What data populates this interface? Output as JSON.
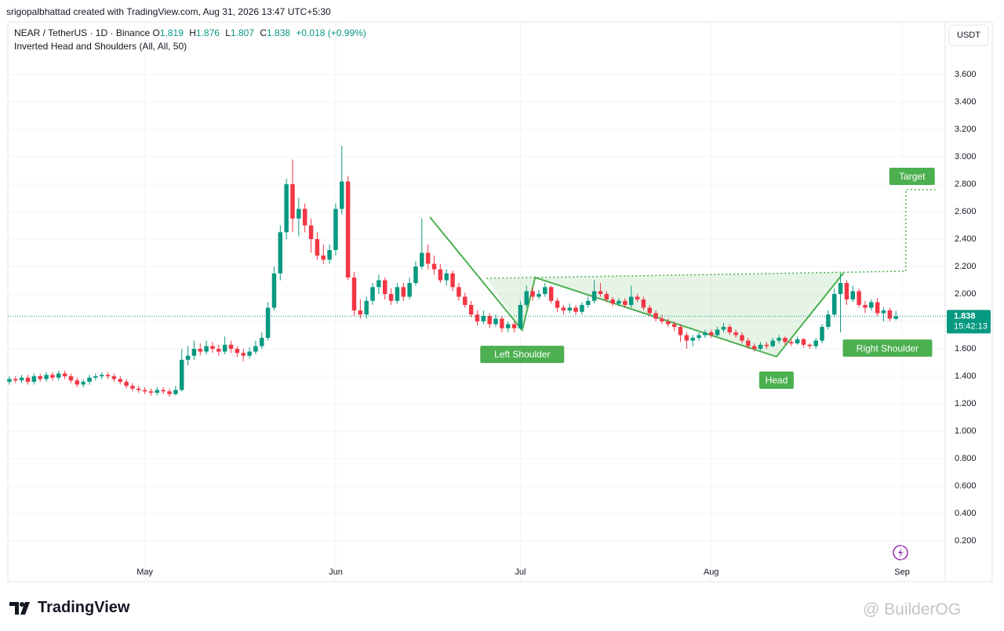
{
  "created_by": "srigopalbhattad created with TradingView.com, Aug 31, 2026 13:47 UTC+5:30",
  "brand": "TradingView",
  "watermark": "@ BuilderOG",
  "chart_data": {
    "type": "candlestick",
    "symbol": "NEAR / TetherUS · 1D · Binance",
    "ohlc_letters": [
      "O",
      "H",
      "L",
      "C"
    ],
    "change": "+0.018 (+0.99%)",
    "currency": "USDT",
    "countdown": "15:42:13",
    "up_color": "#089981",
    "down_color": "#f23645",
    "grid": true,
    "xlim": [
      -0.25,
      152
    ],
    "ylim": [
      0.086,
      3.983
    ],
    "xticks": [
      {
        "value": 22,
        "label": "May"
      },
      {
        "value": 53,
        "label": "Jun"
      },
      {
        "value": 83,
        "label": "Jul"
      },
      {
        "value": 114,
        "label": "Aug"
      },
      {
        "value": 145,
        "label": "Sep"
      }
    ],
    "yticks": [
      {
        "value": 0.2,
        "label": "0.200"
      },
      {
        "value": 0.4,
        "label": "0.400"
      },
      {
        "value": 0.6,
        "label": "0.600"
      },
      {
        "value": 0.8,
        "label": "0.800"
      },
      {
        "value": 1.0,
        "label": "1.000"
      },
      {
        "value": 1.2,
        "label": "1.200"
      },
      {
        "value": 1.4,
        "label": "1.400"
      },
      {
        "value": 1.6,
        "label": "1.600"
      },
      {
        "value": 1.8,
        "label": "1.800"
      },
      {
        "value": 2.0,
        "label": "2.000"
      },
      {
        "value": 2.2,
        "label": "2.200"
      },
      {
        "value": 2.4,
        "label": "2.400"
      },
      {
        "value": 2.6,
        "label": "2.600"
      },
      {
        "value": 2.8,
        "label": "2.800"
      },
      {
        "value": 3.0,
        "label": "3.000"
      },
      {
        "value": 3.2,
        "label": "3.200"
      },
      {
        "value": 3.4,
        "label": "3.400"
      },
      {
        "value": 3.6,
        "label": "3.600"
      }
    ],
    "ohlc": [
      [
        1.36,
        1.4,
        1.34,
        1.38
      ],
      [
        1.38,
        1.4,
        1.35,
        1.37
      ],
      [
        1.37,
        1.41,
        1.35,
        1.39
      ],
      [
        1.39,
        1.41,
        1.34,
        1.36
      ],
      [
        1.36,
        1.42,
        1.34,
        1.4
      ],
      [
        1.4,
        1.42,
        1.36,
        1.38
      ],
      [
        1.38,
        1.43,
        1.36,
        1.41
      ],
      [
        1.41,
        1.43,
        1.37,
        1.39
      ],
      [
        1.39,
        1.44,
        1.37,
        1.42
      ],
      [
        1.42,
        1.44,
        1.38,
        1.4
      ],
      [
        1.4,
        1.42,
        1.35,
        1.37
      ],
      [
        1.37,
        1.39,
        1.32,
        1.34
      ],
      [
        1.34,
        1.38,
        1.32,
        1.36
      ],
      [
        1.36,
        1.41,
        1.34,
        1.39
      ],
      [
        1.39,
        1.42,
        1.37,
        1.4
      ],
      [
        1.4,
        1.43,
        1.38,
        1.41
      ],
      [
        1.41,
        1.43,
        1.38,
        1.4
      ],
      [
        1.4,
        1.42,
        1.36,
        1.38
      ],
      [
        1.38,
        1.4,
        1.34,
        1.36
      ],
      [
        1.36,
        1.38,
        1.31,
        1.33
      ],
      [
        1.33,
        1.35,
        1.29,
        1.31
      ],
      [
        1.31,
        1.33,
        1.28,
        1.3
      ],
      [
        1.3,
        1.32,
        1.27,
        1.29
      ],
      [
        1.29,
        1.31,
        1.26,
        1.28
      ],
      [
        1.28,
        1.32,
        1.26,
        1.3
      ],
      [
        1.3,
        1.32,
        1.27,
        1.29
      ],
      [
        1.29,
        1.31,
        1.25,
        1.27
      ],
      [
        1.27,
        1.33,
        1.26,
        1.3
      ],
      [
        1.3,
        1.6,
        1.29,
        1.52
      ],
      [
        1.52,
        1.62,
        1.48,
        1.55
      ],
      [
        1.55,
        1.66,
        1.52,
        1.6
      ],
      [
        1.6,
        1.64,
        1.55,
        1.58
      ],
      [
        1.58,
        1.66,
        1.56,
        1.62
      ],
      [
        1.62,
        1.65,
        1.57,
        1.6
      ],
      [
        1.6,
        1.63,
        1.55,
        1.58
      ],
      [
        1.58,
        1.69,
        1.56,
        1.63
      ],
      [
        1.63,
        1.66,
        1.57,
        1.6
      ],
      [
        1.6,
        1.62,
        1.54,
        1.57
      ],
      [
        1.57,
        1.6,
        1.51,
        1.55
      ],
      [
        1.55,
        1.61,
        1.53,
        1.58
      ],
      [
        1.58,
        1.66,
        1.56,
        1.62
      ],
      [
        1.62,
        1.72,
        1.6,
        1.68
      ],
      [
        1.68,
        1.94,
        1.66,
        1.9
      ],
      [
        1.9,
        2.2,
        1.88,
        2.15
      ],
      [
        2.15,
        2.5,
        2.1,
        2.45
      ],
      [
        2.45,
        2.84,
        2.4,
        2.8
      ],
      [
        2.8,
        2.98,
        2.45,
        2.55
      ],
      [
        2.55,
        2.7,
        2.42,
        2.62
      ],
      [
        2.62,
        2.66,
        2.45,
        2.5
      ],
      [
        2.5,
        2.55,
        2.3,
        2.4
      ],
      [
        2.4,
        2.45,
        2.25,
        2.28
      ],
      [
        2.28,
        2.36,
        2.22,
        2.25
      ],
      [
        2.25,
        2.36,
        2.22,
        2.32
      ],
      [
        2.32,
        2.66,
        2.28,
        2.62
      ],
      [
        2.62,
        3.08,
        2.58,
        2.82
      ],
      [
        2.82,
        2.86,
        2.1,
        2.12
      ],
      [
        2.12,
        2.16,
        1.84,
        1.88
      ],
      [
        1.88,
        1.96,
        1.82,
        1.85
      ],
      [
        1.85,
        1.98,
        1.82,
        1.95
      ],
      [
        1.95,
        2.08,
        1.92,
        2.05
      ],
      [
        2.05,
        2.14,
        2.0,
        2.1
      ],
      [
        2.1,
        2.12,
        1.96,
        2.0
      ],
      [
        2.0,
        2.04,
        1.92,
        1.95
      ],
      [
        1.95,
        2.08,
        1.93,
        2.05
      ],
      [
        2.05,
        2.08,
        1.95,
        1.98
      ],
      [
        1.98,
        2.12,
        1.96,
        2.08
      ],
      [
        2.08,
        2.24,
        2.06,
        2.2
      ],
      [
        2.2,
        2.55,
        2.18,
        2.3
      ],
      [
        2.3,
        2.36,
        2.18,
        2.22
      ],
      [
        2.22,
        2.28,
        2.14,
        2.18
      ],
      [
        2.18,
        2.22,
        2.08,
        2.1
      ],
      [
        2.1,
        2.18,
        2.06,
        2.15
      ],
      [
        2.15,
        2.17,
        2.02,
        2.05
      ],
      [
        2.05,
        2.08,
        1.95,
        1.98
      ],
      [
        1.98,
        2.01,
        1.9,
        1.92
      ],
      [
        1.92,
        1.95,
        1.83,
        1.85
      ],
      [
        1.85,
        1.88,
        1.77,
        1.8
      ],
      [
        1.8,
        1.88,
        1.78,
        1.84
      ],
      [
        1.84,
        1.86,
        1.75,
        1.78
      ],
      [
        1.78,
        1.85,
        1.76,
        1.82
      ],
      [
        1.82,
        1.84,
        1.72,
        1.75
      ],
      [
        1.75,
        1.8,
        1.72,
        1.78
      ],
      [
        1.78,
        1.8,
        1.72,
        1.75
      ],
      [
        1.75,
        1.95,
        1.74,
        1.92
      ],
      [
        1.92,
        2.06,
        1.9,
        2.02
      ],
      [
        2.02,
        2.05,
        1.95,
        1.98
      ],
      [
        1.98,
        2.03,
        1.96,
        2.0
      ],
      [
        2.0,
        2.08,
        1.98,
        2.05
      ],
      [
        2.05,
        2.06,
        1.93,
        1.95
      ],
      [
        1.95,
        1.97,
        1.87,
        1.9
      ],
      [
        1.9,
        1.92,
        1.85,
        1.88
      ],
      [
        1.88,
        1.93,
        1.86,
        1.9
      ],
      [
        1.9,
        1.92,
        1.85,
        1.87
      ],
      [
        1.87,
        1.94,
        1.85,
        1.92
      ],
      [
        1.92,
        1.98,
        1.9,
        1.95
      ],
      [
        1.95,
        2.1,
        1.93,
        2.02
      ],
      [
        2.02,
        2.08,
        1.98,
        2.0
      ],
      [
        2.0,
        2.02,
        1.94,
        1.96
      ],
      [
        1.96,
        1.98,
        1.91,
        1.93
      ],
      [
        1.93,
        1.97,
        1.91,
        1.95
      ],
      [
        1.95,
        1.97,
        1.9,
        1.92
      ],
      [
        1.92,
        2.06,
        1.9,
        1.98
      ],
      [
        1.98,
        2.0,
        1.94,
        1.96
      ],
      [
        1.96,
        1.98,
        1.88,
        1.9
      ],
      [
        1.9,
        1.92,
        1.84,
        1.86
      ],
      [
        1.86,
        1.88,
        1.8,
        1.82
      ],
      [
        1.82,
        1.85,
        1.78,
        1.8
      ],
      [
        1.8,
        1.82,
        1.76,
        1.78
      ],
      [
        1.78,
        1.8,
        1.73,
        1.76
      ],
      [
        1.76,
        1.78,
        1.65,
        1.7
      ],
      [
        1.7,
        1.72,
        1.6,
        1.66
      ],
      [
        1.66,
        1.7,
        1.62,
        1.68
      ],
      [
        1.68,
        1.72,
        1.66,
        1.7
      ],
      [
        1.7,
        1.74,
        1.68,
        1.72
      ],
      [
        1.72,
        1.74,
        1.68,
        1.7
      ],
      [
        1.7,
        1.76,
        1.69,
        1.74
      ],
      [
        1.74,
        1.79,
        1.72,
        1.76
      ],
      [
        1.76,
        1.78,
        1.7,
        1.72
      ],
      [
        1.72,
        1.74,
        1.68,
        1.7
      ],
      [
        1.7,
        1.72,
        1.64,
        1.66
      ],
      [
        1.66,
        1.68,
        1.6,
        1.62
      ],
      [
        1.62,
        1.64,
        1.58,
        1.6
      ],
      [
        1.6,
        1.65,
        1.59,
        1.63
      ],
      [
        1.63,
        1.65,
        1.6,
        1.62
      ],
      [
        1.62,
        1.68,
        1.61,
        1.66
      ],
      [
        1.66,
        1.7,
        1.64,
        1.68
      ],
      [
        1.68,
        1.69,
        1.63,
        1.65
      ],
      [
        1.65,
        1.67,
        1.62,
        1.64
      ],
      [
        1.64,
        1.69,
        1.63,
        1.67
      ],
      [
        1.67,
        1.68,
        1.61,
        1.63
      ],
      [
        1.63,
        1.64,
        1.6,
        1.62
      ],
      [
        1.62,
        1.68,
        1.6,
        1.66
      ],
      [
        1.66,
        1.78,
        1.64,
        1.76
      ],
      [
        1.76,
        1.88,
        1.74,
        1.85
      ],
      [
        1.85,
        2.04,
        1.83,
        2.0
      ],
      [
        2.0,
        2.15,
        1.72,
        2.08
      ],
      [
        2.08,
        2.1,
        1.92,
        1.96
      ],
      [
        1.96,
        2.06,
        1.94,
        2.02
      ],
      [
        2.02,
        2.04,
        1.9,
        1.92
      ],
      [
        1.92,
        1.95,
        1.86,
        1.9
      ],
      [
        1.9,
        1.96,
        1.88,
        1.94
      ],
      [
        1.94,
        1.97,
        1.84,
        1.86
      ],
      [
        1.86,
        1.9,
        1.8,
        1.88
      ],
      [
        1.88,
        1.9,
        1.8,
        1.82
      ],
      [
        1.819,
        1.876,
        1.807,
        1.838
      ]
    ],
    "pattern": {
      "title": "Inverted Head and Shoulders (All, All, 50)",
      "color": "#4caf50",
      "zigzag": {
        "x": [
          68.3,
          83.3,
          85.4,
          124.6,
          135.5
        ],
        "y": [
          2.56,
          1.737,
          2.12,
          1.543,
          2.154
        ]
      },
      "neckline": {
        "x": [
          77.5,
          145.6
        ],
        "y": [
          2.114,
          2.166
        ]
      },
      "target": {
        "x": [
          145.6,
          145.6,
          150.4
        ],
        "y": [
          2.166,
          2.76,
          2.76
        ]
      },
      "labels": {
        "left_shoulder": "Left Shoulder",
        "head": "Head",
        "right_shoulder": "Right Shoulder",
        "target": "Target"
      }
    }
  }
}
